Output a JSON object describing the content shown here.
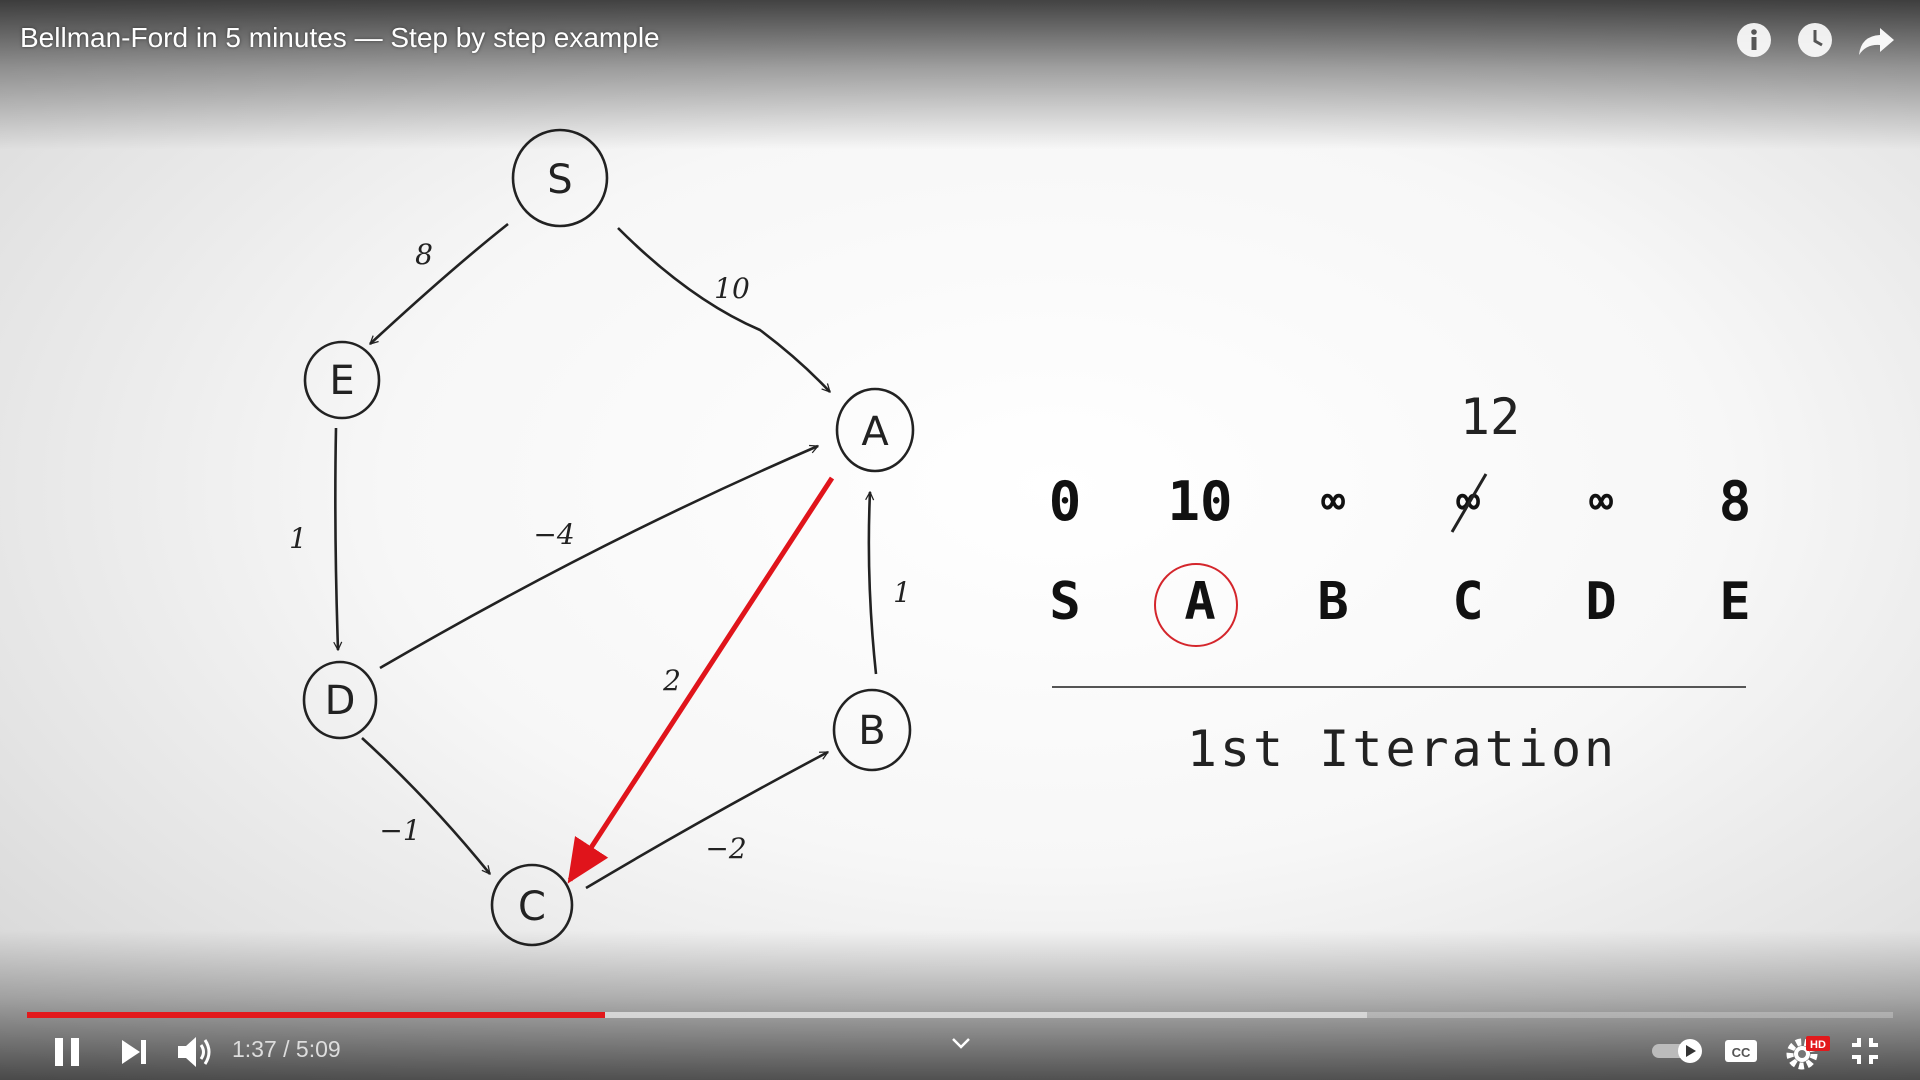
{
  "player": {
    "title": "Bellman-Ford in 5 minutes — Step by step example",
    "time_display": "1:37 / 5:09",
    "played_fraction": 0.31,
    "loaded_fraction": 0.718,
    "accent_color": "#e2191c",
    "hd_badge": "HD",
    "top_icons": [
      "info-icon",
      "watch-later-icon",
      "share-icon"
    ],
    "control_icons": [
      "pause-icon",
      "next-icon",
      "volume-icon",
      "chevron-down-icon",
      "autoplay-toggle-icon",
      "captions-icon",
      "settings-icon",
      "exit-fullscreen-icon"
    ]
  },
  "graph": {
    "nodes": {
      "s": "S",
      "e": "E",
      "a": "A",
      "d": "D",
      "b": "B",
      "c": "C"
    },
    "edge_weights": {
      "s_e": "8",
      "s_a": "10",
      "e_d": "1",
      "d_a": "−4",
      "a_c": "2",
      "b_a": "1",
      "d_c": "−1",
      "c_b": "−2"
    },
    "highlight_color": "#e0141b"
  },
  "table": {
    "distances": [
      "0",
      "10",
      "∞",
      "∞",
      "∞",
      "8"
    ],
    "updated_value": "12",
    "vertices": [
      "S",
      "A",
      "B",
      "C",
      "D",
      "E"
    ],
    "iteration": "1st Iteration"
  }
}
